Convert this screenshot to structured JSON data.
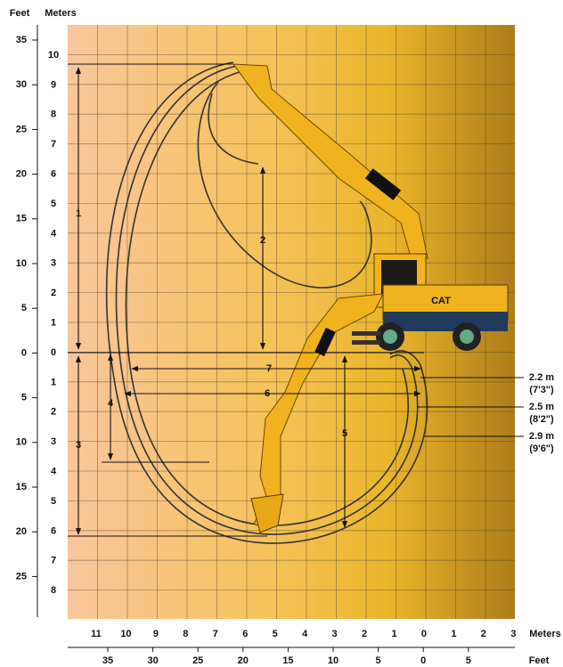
{
  "left_axis": {
    "feet_title": "Feet",
    "meters_title": "Meters",
    "feet": [
      35,
      30,
      25,
      20,
      15,
      10,
      5,
      0,
      5,
      10,
      15,
      20,
      25
    ],
    "meters": [
      10,
      9,
      8,
      7,
      6,
      5,
      4,
      3,
      2,
      1,
      0,
      1,
      2,
      3,
      4,
      5,
      6,
      7,
      8
    ]
  },
  "bottom_axis": {
    "meters_title": "Meters",
    "feet_title": "Feet",
    "meters": [
      11,
      10,
      9,
      8,
      7,
      6,
      5,
      4,
      3,
      2,
      1,
      0,
      1,
      2,
      3
    ],
    "feet": [
      35,
      30,
      25,
      20,
      15,
      10,
      5,
      0,
      5
    ]
  },
  "dimensions": [
    "1",
    "2",
    "3",
    "4",
    "5",
    "6",
    "7"
  ],
  "clearances": [
    {
      "metric": "2.2 m",
      "imperial": "(7'3\")"
    },
    {
      "metric": "2.5 m",
      "imperial": "(8'2\")"
    },
    {
      "metric": "2.9 m",
      "imperial": "(9'6\")"
    }
  ],
  "badge": "CAT"
}
